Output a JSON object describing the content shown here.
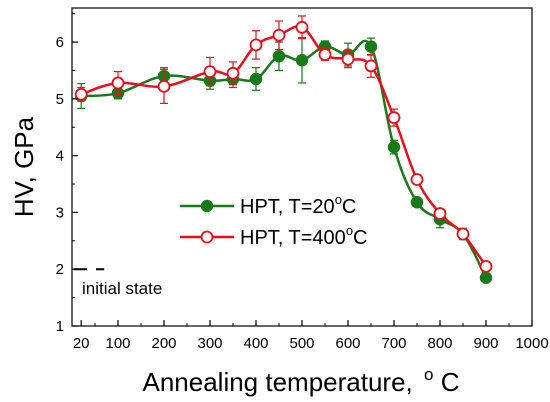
{
  "chart_data": {
    "type": "line",
    "x_label": "Annealing temperature,",
    "x_unit": "C",
    "y_label": "HV, GPa",
    "xlim": [
      0,
      1000
    ],
    "ylim": [
      1,
      6.6
    ],
    "x_ticks": [
      20,
      100,
      200,
      300,
      400,
      500,
      600,
      700,
      800,
      900,
      1000
    ],
    "x_tick_labels": [
      "20",
      "100",
      "200",
      "300",
      "400",
      "500",
      "600",
      "700",
      "800",
      "900",
      "1000"
    ],
    "y_ticks": [
      1,
      2,
      3,
      4,
      5,
      6
    ],
    "y_tick_labels": [
      "1",
      "2",
      "3",
      "4",
      "5",
      "6"
    ],
    "grid": false,
    "legend_position": "center",
    "series": [
      {
        "name": "HPT, T=20",
        "name_sup": "o",
        "name_suffix": "C",
        "color": "#1a7a1a",
        "marker": "filled-circle",
        "x": [
          20,
          100,
          200,
          300,
          350,
          400,
          450,
          500,
          550,
          600,
          650,
          700,
          750,
          800,
          850,
          900
        ],
        "y": [
          5.05,
          5.1,
          5.4,
          5.32,
          5.35,
          5.35,
          5.75,
          5.68,
          5.92,
          5.78,
          5.92,
          4.15,
          3.18,
          2.88,
          2.62,
          1.85
        ],
        "err": [
          0.22,
          0.1,
          0.15,
          0.15,
          0.15,
          0.2,
          0.25,
          0.4,
          0.1,
          0.2,
          0.15,
          0.12,
          0.05,
          0.15,
          0.1,
          0.05
        ]
      },
      {
        "name": "HPT, T=400",
        "name_sup": "o",
        "name_suffix": "C",
        "color": "#e8101c",
        "marker": "open-circle",
        "x": [
          20,
          100,
          200,
          300,
          350,
          400,
          450,
          500,
          550,
          600,
          650,
          700,
          750,
          800,
          850,
          900
        ],
        "y": [
          5.08,
          5.28,
          5.22,
          5.48,
          5.45,
          5.95,
          6.12,
          6.26,
          5.78,
          5.7,
          5.58,
          4.67,
          3.58,
          2.98,
          2.62,
          2.05
        ],
        "err": [
          0.12,
          0.2,
          0.3,
          0.25,
          0.2,
          0.25,
          0.25,
          0.2,
          0.1,
          0.15,
          0.2,
          0.15,
          0.05,
          0.05,
          0.05,
          0.05
        ]
      }
    ],
    "reference": {
      "label": "initial state",
      "y": 2.0,
      "x_start": 0,
      "x_end": 70,
      "style": "dashed"
    }
  }
}
